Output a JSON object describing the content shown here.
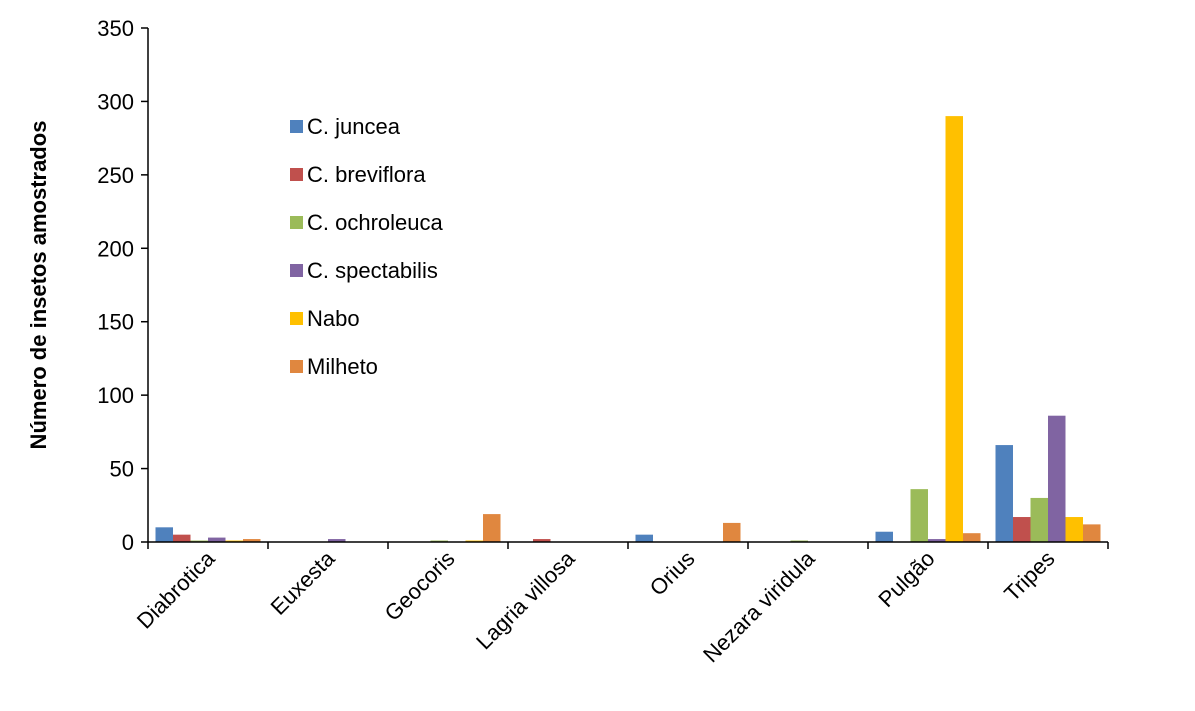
{
  "chart_data": {
    "type": "bar",
    "title": "",
    "xlabel": "",
    "ylabel": "Número de insetos amostrados",
    "ylim": [
      0,
      350
    ],
    "yticks": [
      0,
      50,
      100,
      150,
      200,
      250,
      300,
      350
    ],
    "grid": false,
    "legend_position": "top-left",
    "categories": [
      "Diabrotica",
      "Euxesta",
      "Geocoris",
      "Lagria villosa",
      "Orius",
      "Nezara viridula",
      "Pulgão",
      "Tripes"
    ],
    "series": [
      {
        "name": "C. juncea",
        "color": "#4F81BD",
        "values": [
          10,
          0,
          0,
          0,
          5,
          0,
          7,
          66
        ]
      },
      {
        "name": "C. breviflora",
        "color": "#C0504D",
        "values": [
          5,
          0,
          0,
          2,
          0,
          0,
          0,
          17
        ]
      },
      {
        "name": "C. ochroleuca",
        "color": "#9BBB59",
        "values": [
          1,
          0,
          1,
          0,
          0,
          1,
          36,
          30
        ]
      },
      {
        "name": "C. spectabilis",
        "color": "#8064A2",
        "values": [
          3,
          2,
          0,
          0,
          0,
          0,
          2,
          86
        ]
      },
      {
        "name": "Nabo",
        "color": "#FFC000",
        "values": [
          1,
          0,
          1,
          0,
          0,
          0,
          290,
          17
        ]
      },
      {
        "name": "Milheto",
        "color": "#E0873F",
        "values": [
          2,
          0,
          19,
          0,
          13,
          0,
          6,
          12
        ]
      }
    ]
  }
}
